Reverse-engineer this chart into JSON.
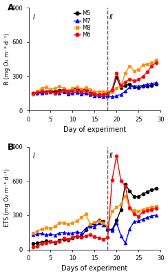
{
  "panel_A": {
    "ylabel": "R (mg O₂ m⁻³ d⁻¹)",
    "xlabel": "Day of experiment",
    "ylim": [
      0,
      900
    ],
    "yticks": [
      0,
      300,
      600,
      900
    ],
    "xlim": [
      0,
      30
    ],
    "xticks": [
      0,
      5,
      10,
      15,
      20,
      25,
      30
    ],
    "label": "A",
    "phase_label_I": "I",
    "phase_label_II": "II",
    "dashed_line_x": 18,
    "M5": {
      "color": "#000000",
      "marker": "o",
      "days": [
        1,
        2,
        3,
        4,
        5,
        6,
        7,
        8,
        9,
        10,
        11,
        12,
        13,
        14,
        15,
        16,
        17,
        18,
        19,
        20,
        21,
        22,
        23,
        24,
        25,
        26,
        27,
        28,
        29
      ],
      "values": [
        150,
        155,
        160,
        165,
        175,
        165,
        175,
        185,
        165,
        185,
        195,
        175,
        190,
        165,
        150,
        135,
        140,
        150,
        170,
        290,
        200,
        220,
        230,
        205,
        200,
        210,
        215,
        220,
        230
      ]
    },
    "M7": {
      "color": "#0000ff",
      "marker": "^",
      "days": [
        1,
        2,
        3,
        4,
        5,
        6,
        7,
        8,
        9,
        10,
        11,
        12,
        13,
        14,
        15,
        16,
        17,
        18,
        19,
        20,
        21,
        22,
        23,
        24,
        25,
        26,
        27,
        28,
        29
      ],
      "values": [
        145,
        150,
        155,
        160,
        165,
        150,
        155,
        165,
        145,
        150,
        160,
        145,
        150,
        140,
        130,
        125,
        120,
        130,
        120,
        130,
        140,
        170,
        205,
        215,
        215,
        220,
        230,
        235,
        245
      ]
    },
    "M8": {
      "color": "#ff8c00",
      "marker": "s",
      "days": [
        1,
        2,
        3,
        4,
        5,
        6,
        7,
        8,
        9,
        10,
        11,
        12,
        13,
        14,
        15,
        16,
        17,
        18,
        19,
        20,
        21,
        22,
        23,
        24,
        25,
        26,
        27,
        28,
        29
      ],
      "values": [
        145,
        170,
        195,
        205,
        185,
        195,
        210,
        195,
        175,
        195,
        205,
        190,
        200,
        185,
        165,
        165,
        165,
        165,
        165,
        195,
        215,
        330,
        390,
        345,
        360,
        400,
        405,
        415,
        440
      ]
    },
    "M6": {
      "color": "#ff0000",
      "marker": "o",
      "days": [
        1,
        2,
        3,
        4,
        5,
        6,
        7,
        8,
        9,
        10,
        11,
        12,
        13,
        14,
        15,
        16,
        17,
        18,
        19,
        20,
        21,
        22,
        23,
        24,
        25,
        26,
        27,
        28,
        29
      ],
      "values": [
        150,
        160,
        170,
        165,
        165,
        155,
        165,
        175,
        165,
        170,
        175,
        165,
        170,
        155,
        145,
        140,
        140,
        145,
        185,
        330,
        220,
        250,
        275,
        260,
        270,
        295,
        340,
        390,
        420
      ]
    }
  },
  "panel_B": {
    "ylabel": "ETS (mg O₂ m⁻³ d⁻¹)",
    "xlabel": "Days of experiment",
    "ylim": [
      0,
      900
    ],
    "yticks": [
      0,
      300,
      600,
      900
    ],
    "xlim": [
      0,
      30
    ],
    "xticks": [
      0,
      5,
      10,
      15,
      20,
      25,
      30
    ],
    "label": "B",
    "phase_label_I": "I",
    "phase_label_II": "II",
    "dashed_line_x": 18,
    "M5": {
      "color": "#000000",
      "marker": "o",
      "days": [
        1,
        2,
        3,
        4,
        5,
        6,
        7,
        8,
        9,
        10,
        11,
        12,
        13,
        14,
        15,
        16,
        17,
        18,
        19,
        20,
        21,
        22,
        23,
        24,
        25,
        26,
        27,
        28,
        29
      ],
      "values": [
        50,
        55,
        65,
        75,
        70,
        60,
        80,
        90,
        80,
        100,
        115,
        110,
        170,
        215,
        225,
        260,
        245,
        175,
        175,
        255,
        350,
        570,
        510,
        460,
        465,
        485,
        505,
        520,
        535
      ]
    },
    "M7": {
      "color": "#0000ff",
      "marker": "^",
      "days": [
        1,
        2,
        3,
        4,
        5,
        6,
        7,
        8,
        9,
        10,
        11,
        12,
        13,
        14,
        15,
        16,
        17,
        18,
        19,
        20,
        21,
        22,
        23,
        24,
        25,
        26,
        27,
        28,
        29
      ],
      "values": [
        130,
        135,
        140,
        130,
        135,
        125,
        145,
        150,
        140,
        145,
        155,
        145,
        185,
        205,
        195,
        230,
        215,
        185,
        165,
        235,
        120,
        55,
        180,
        245,
        250,
        265,
        280,
        295,
        300
      ]
    },
    "M8": {
      "color": "#ff8c00",
      "marker": "s",
      "days": [
        1,
        2,
        3,
        4,
        5,
        6,
        7,
        8,
        9,
        10,
        11,
        12,
        13,
        14,
        15,
        16,
        17,
        18,
        19,
        20,
        21,
        22,
        23,
        24,
        25,
        26,
        27,
        28,
        29
      ],
      "values": [
        145,
        160,
        180,
        190,
        185,
        200,
        235,
        230,
        220,
        235,
        250,
        280,
        310,
        220,
        240,
        250,
        230,
        200,
        335,
        370,
        395,
        470,
        360,
        340,
        335,
        350,
        360,
        370,
        375
      ]
    },
    "M6": {
      "color": "#ff0000",
      "marker": "o",
      "days": [
        1,
        2,
        3,
        4,
        5,
        6,
        7,
        8,
        9,
        10,
        11,
        12,
        13,
        14,
        15,
        16,
        17,
        18,
        19,
        20,
        21,
        22,
        23,
        24,
        25,
        26,
        27,
        28,
        29
      ],
      "values": [
        20,
        30,
        50,
        60,
        70,
        65,
        70,
        100,
        90,
        105,
        120,
        105,
        120,
        130,
        110,
        100,
        90,
        105,
        610,
        820,
        600,
        555,
        365,
        310,
        290,
        330,
        340,
        350,
        360
      ]
    }
  },
  "legend": {
    "M5": {
      "label": "M5",
      "color": "#000000",
      "marker": "o"
    },
    "M7": {
      "label": "M7",
      "color": "#0000ff",
      "marker": "^"
    },
    "M8": {
      "label": "M8",
      "color": "#ff8c00",
      "marker": "s"
    },
    "M6": {
      "label": "M6",
      "color": "#ff0000",
      "marker": "o"
    }
  },
  "background_color": "#ffffff",
  "markersize": 3.5,
  "linewidth": 1.0
}
